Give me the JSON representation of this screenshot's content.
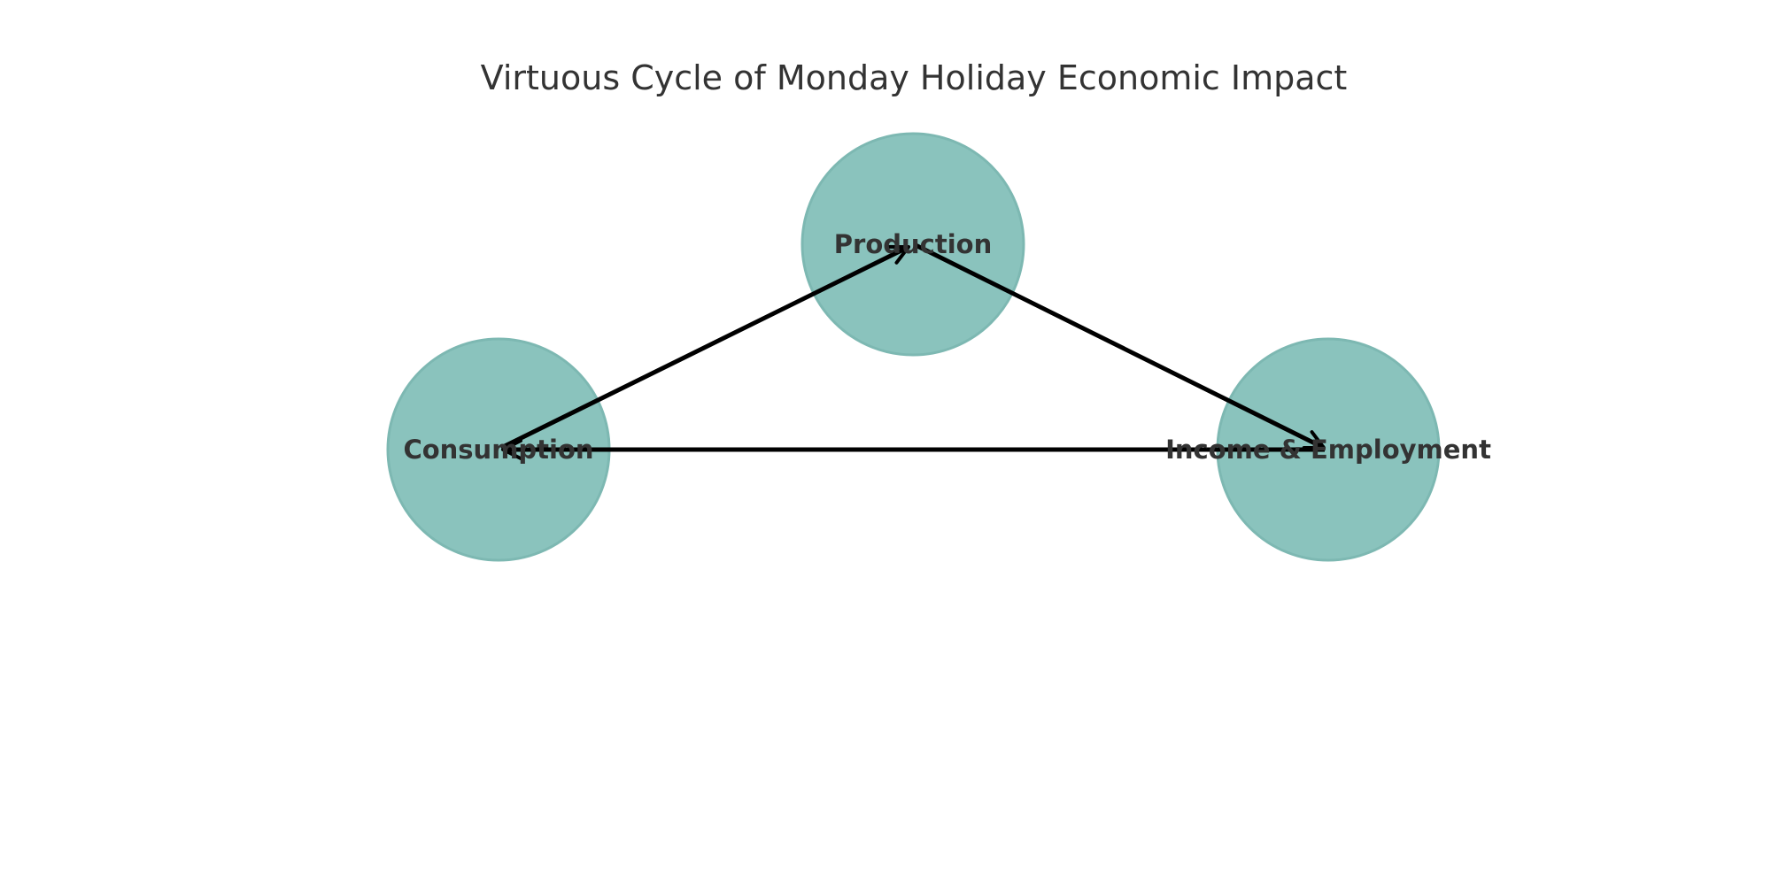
{
  "title": "Virtuous Cycle of Monday Holiday Economic Impact",
  "colors": {
    "node_fill": "#8ac3bd",
    "node_stroke": "#7db8b2",
    "label": "#333333",
    "arrow": "#000000",
    "title": "#333333"
  },
  "nodes": [
    {
      "id": "production",
      "label": "Production"
    },
    {
      "id": "income",
      "label": "Income & Employment"
    },
    {
      "id": "consumption",
      "label": "Consumption"
    }
  ],
  "edges": [
    {
      "from": "production",
      "to": "income"
    },
    {
      "from": "income",
      "to": "consumption"
    },
    {
      "from": "consumption",
      "to": "production"
    }
  ]
}
